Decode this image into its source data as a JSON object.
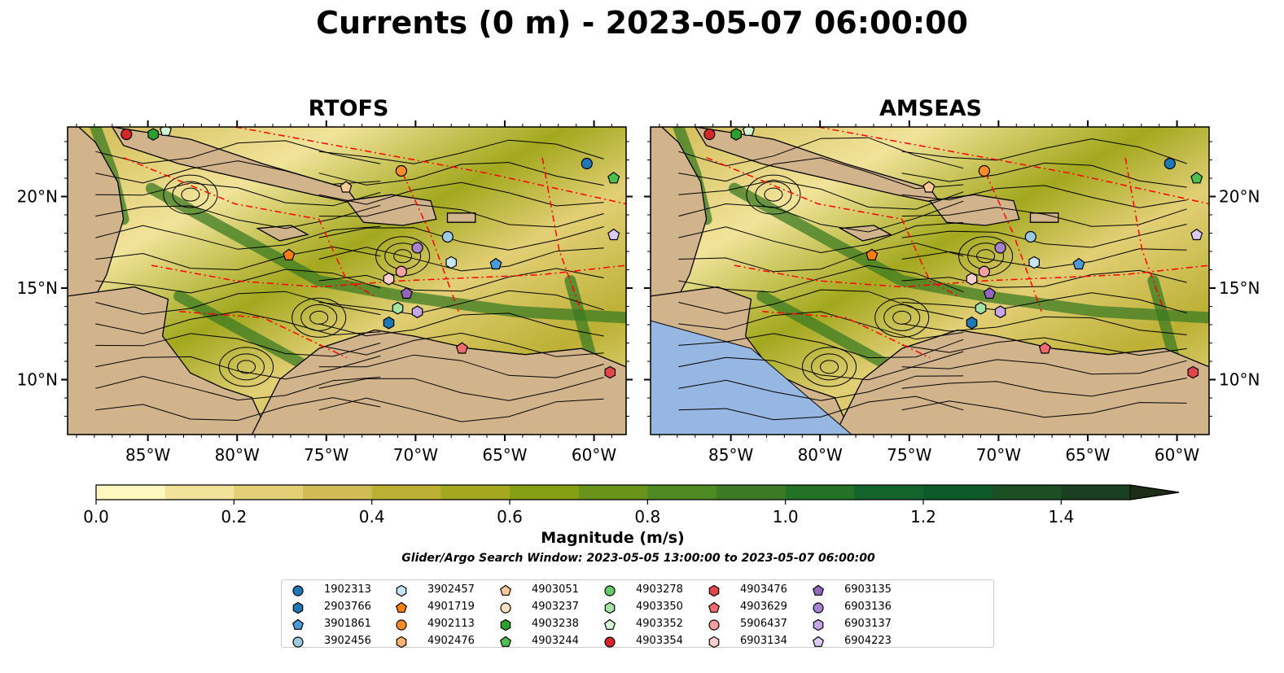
{
  "title": "Currents (0 m) - 2023-05-07 06:00:00",
  "panels": [
    {
      "title": "RTOFS"
    },
    {
      "title": "AMSEAS"
    }
  ],
  "colors": {
    "land": "#d2b48c",
    "water_masked": "#96b7e2",
    "front_lines": "#ff0000",
    "coast": "#000000",
    "colormap": [
      "#fef7bf",
      "#f1e39a",
      "#e2cf76",
      "#d1bb55",
      "#bcb034",
      "#a3a81e",
      "#85a012",
      "#69931a",
      "#4e8a22",
      "#3c7b23",
      "#237226",
      "#13632d",
      "#0f5a2b",
      "#1c4f24",
      "#1a3f22",
      "#1c2e18"
    ]
  },
  "chart_data": [
    {
      "type": "map",
      "panel": "RTOFS",
      "x_ticks": [
        "85°W",
        "80°W",
        "75°W",
        "70°W",
        "65°W",
        "60°W"
      ],
      "y_ticks": [
        "20°N",
        "15°N",
        "10°N"
      ],
      "x_range": [
        -89.5,
        -58.2
      ],
      "y_range": [
        7.0,
        23.8
      ],
      "y_axis_side": "left"
    },
    {
      "type": "map",
      "panel": "AMSEAS",
      "x_ticks": [
        "85°W",
        "80°W",
        "75°W",
        "70°W",
        "65°W",
        "60°W"
      ],
      "y_ticks": [
        "20°N",
        "15°N",
        "10°N"
      ],
      "x_range": [
        -89.5,
        -58.2
      ],
      "y_range": [
        7.0,
        23.8
      ],
      "y_axis_side": "right"
    }
  ],
  "colorbar": {
    "label": "Magnitude (m/s)",
    "range": [
      0.0,
      1.5
    ],
    "ticks": [
      "0.0",
      "0.2",
      "0.4",
      "0.6",
      "0.8",
      "1.0",
      "1.2",
      "1.4"
    ],
    "extend": "max"
  },
  "search_window": "Glider/Argo Search Window: 2023-05-05 13:00:00 to 2023-05-07 06:00:00",
  "legend": {
    "items": [
      {
        "id": "1902313",
        "marker": "circle",
        "color": "#1f77b4"
      },
      {
        "id": "2903766",
        "marker": "hexagon",
        "color": "#1f77b4"
      },
      {
        "id": "3901861",
        "marker": "pentagon",
        "color": "#4c9ad6"
      },
      {
        "id": "3902456",
        "marker": "circle",
        "color": "#9ecae1"
      },
      {
        "id": "3902457",
        "marker": "hexagon",
        "color": "#c6e5f7"
      },
      {
        "id": "4901719",
        "marker": "pentagon",
        "color": "#ff7f0e"
      },
      {
        "id": "4902113",
        "marker": "circle",
        "color": "#ff8c2a"
      },
      {
        "id": "4902476",
        "marker": "hexagon",
        "color": "#ffb26b"
      },
      {
        "id": "4903051",
        "marker": "pentagon",
        "color": "#ffc999"
      },
      {
        "id": "4903237",
        "marker": "circle",
        "color": "#ffe0c2"
      },
      {
        "id": "4903238",
        "marker": "hexagon",
        "color": "#2ca02c"
      },
      {
        "id": "4903244",
        "marker": "pentagon",
        "color": "#4dc04d"
      },
      {
        "id": "4903278",
        "marker": "circle",
        "color": "#67c967"
      },
      {
        "id": "4903350",
        "marker": "hexagon",
        "color": "#a3e3a3"
      },
      {
        "id": "4903352",
        "marker": "pentagon",
        "color": "#d4f5d4"
      },
      {
        "id": "4903354",
        "marker": "circle",
        "color": "#d62728"
      },
      {
        "id": "4903476",
        "marker": "hexagon",
        "color": "#e0474a"
      },
      {
        "id": "4903629",
        "marker": "pentagon",
        "color": "#ee6b6e"
      },
      {
        "id": "5906437",
        "marker": "circle",
        "color": "#f2a0a0"
      },
      {
        "id": "6903134",
        "marker": "hexagon",
        "color": "#fbcdcd"
      },
      {
        "id": "6903135",
        "marker": "pentagon",
        "color": "#9467bd"
      },
      {
        "id": "6903136",
        "marker": "circle",
        "color": "#a682cf"
      },
      {
        "id": "6903137",
        "marker": "hexagon",
        "color": "#c5a6e6"
      },
      {
        "id": "6904223",
        "marker": "pentagon",
        "color": "#dccaf2"
      }
    ]
  },
  "platforms": [
    {
      "id": "4903354",
      "lon": -86.2,
      "lat": 23.4
    },
    {
      "id": "4903238",
      "lon": -84.7,
      "lat": 23.4
    },
    {
      "id": "4903352",
      "lon": -84.0,
      "lat": 23.6
    },
    {
      "id": "4903051",
      "lon": -73.9,
      "lat": 20.5
    },
    {
      "id": "4902113",
      "lon": -70.8,
      "lat": 21.4
    },
    {
      "id": "1902313",
      "lon": -60.4,
      "lat": 21.8
    },
    {
      "id": "4903244",
      "lon": -58.9,
      "lat": 21.0
    },
    {
      "id": "6904223",
      "lon": -58.9,
      "lat": 17.9
    },
    {
      "id": "4901719",
      "lon": -77.1,
      "lat": 16.8
    },
    {
      "id": "6903136",
      "lon": -69.9,
      "lat": 17.2
    },
    {
      "id": "3902456",
      "lon": -68.2,
      "lat": 17.8
    },
    {
      "id": "3902457",
      "lon": -68.0,
      "lat": 16.4
    },
    {
      "id": "3901861",
      "lon": -65.5,
      "lat": 16.3
    },
    {
      "id": "5906437",
      "lon": -70.8,
      "lat": 15.9
    },
    {
      "id": "6903134",
      "lon": -71.5,
      "lat": 15.5
    },
    {
      "id": "6903135",
      "lon": -70.5,
      "lat": 14.7
    },
    {
      "id": "4903350",
      "lon": -71.0,
      "lat": 13.9
    },
    {
      "id": "6903137",
      "lon": -69.9,
      "lat": 13.7
    },
    {
      "id": "2903766",
      "lon": -71.5,
      "lat": 13.1
    },
    {
      "id": "4903629",
      "lon": -67.4,
      "lat": 11.7
    },
    {
      "id": "4903476",
      "lon": -59.1,
      "lat": 10.4
    }
  ]
}
